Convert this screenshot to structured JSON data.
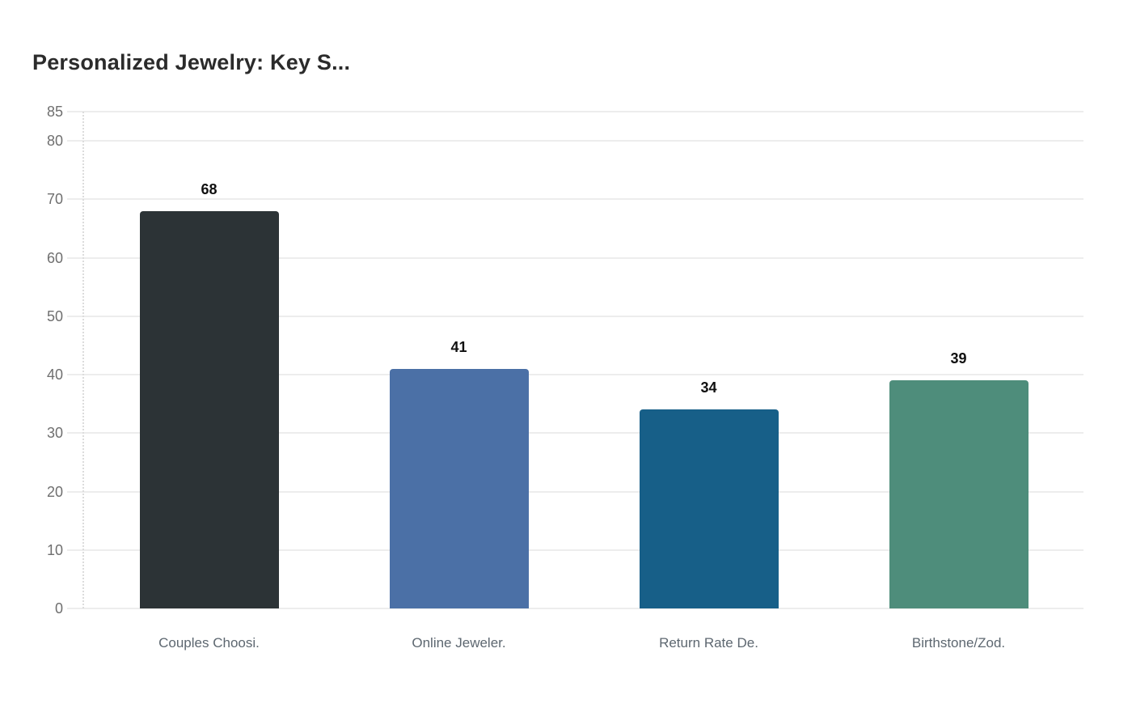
{
  "chart_data": {
    "type": "bar",
    "title": "Personalized Jewelry: Key S...",
    "categories": [
      "Couples Choosi.",
      "Online Jeweler.",
      "Return Rate De.",
      "Birthstone/Zod."
    ],
    "values": [
      68,
      41,
      34,
      39
    ],
    "bar_colors": [
      "#2c3336",
      "#4b70a6",
      "#175f88",
      "#4e8d7b"
    ],
    "xlabel": "",
    "ylabel": "",
    "ylim": [
      0,
      85
    ],
    "yticks": [
      0,
      10,
      20,
      30,
      40,
      50,
      60,
      70,
      80,
      85
    ],
    "grid": true,
    "legend_position": "none",
    "colors": {
      "background": "#ffffff",
      "title_text": "#2b2b2b",
      "y_tick_text": "#6f6f6f",
      "category_text": "#5d6770",
      "value_label_text": "#101010",
      "gridline": "#ededed",
      "axis_line": "#dcdcdc"
    }
  }
}
